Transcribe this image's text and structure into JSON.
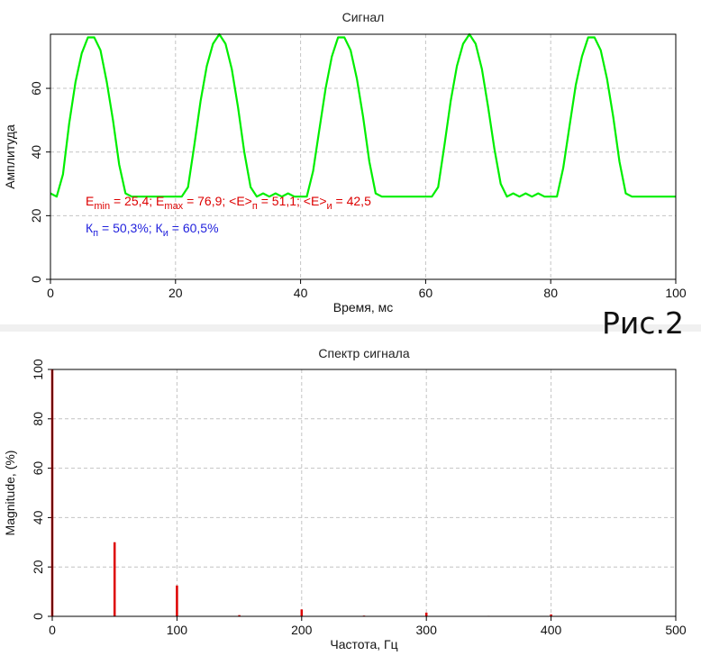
{
  "figure_label": "Рис.2",
  "chart_data": [
    {
      "type": "line",
      "title": "Сигнал",
      "xlabel": "Время, мс",
      "ylabel": "Амплитуда",
      "xlim": [
        0,
        100
      ],
      "ylim": [
        0,
        77
      ],
      "xticks": [
        0,
        20,
        40,
        60,
        80,
        100
      ],
      "yticks": [
        0,
        20,
        40,
        60
      ],
      "grid": true,
      "series": [
        {
          "color": "#00ee00",
          "x": [
            0,
            1,
            2,
            3,
            4,
            5,
            6,
            7,
            8,
            9,
            10,
            11,
            12,
            13,
            14,
            15,
            16,
            17,
            18,
            19,
            20,
            21,
            22,
            23,
            24,
            25,
            26,
            27,
            28,
            29,
            30,
            31,
            32,
            33,
            34,
            35,
            36,
            37,
            38,
            39,
            40,
            41,
            42,
            43,
            44,
            45,
            46,
            47,
            48,
            49,
            50,
            51,
            52,
            53,
            54,
            55,
            56,
            57,
            58,
            59,
            60,
            61,
            62,
            63,
            64,
            65,
            66,
            67,
            68,
            69,
            70,
            71,
            72,
            73,
            74,
            75,
            76,
            77,
            78,
            79,
            80,
            81,
            82,
            83,
            84,
            85,
            86,
            87,
            88,
            89,
            90,
            91,
            92,
            93,
            94,
            95,
            96,
            97,
            98,
            99,
            100
          ],
          "y": [
            27,
            26,
            33,
            49,
            62,
            71,
            76,
            76,
            72,
            62,
            50,
            36,
            27,
            26,
            26,
            26,
            26,
            26,
            26,
            26,
            26,
            26,
            29,
            42,
            56,
            67,
            74,
            77,
            74,
            66,
            54,
            40,
            29,
            26,
            27,
            26,
            27,
            26,
            27,
            26,
            26,
            26,
            34,
            47,
            60,
            70,
            76,
            76,
            72,
            63,
            51,
            37,
            27,
            26,
            26,
            26,
            26,
            26,
            26,
            26,
            26,
            26,
            29,
            42,
            56,
            67,
            74,
            77,
            74,
            66,
            54,
            41,
            30,
            26,
            27,
            26,
            27,
            26,
            27,
            26,
            26,
            26,
            35,
            48,
            61,
            70,
            76,
            76,
            72,
            63,
            51,
            37,
            27,
            26,
            26,
            26,
            26,
            26,
            26,
            26,
            26
          ]
        }
      ],
      "annotations": [
        {
          "color": "#dd0000",
          "parts": [
            {
              "t": "E"
            },
            {
              "t": "min",
              "sub": true
            },
            {
              "t": " = 25,4; E"
            },
            {
              "t": "max",
              "sub": true
            },
            {
              "t": " = 76,9; <E>"
            },
            {
              "t": "п",
              "sub": true
            },
            {
              "t": " = 51,1; <E>"
            },
            {
              "t": "и",
              "sub": true
            },
            {
              "t": " = 42,5"
            }
          ]
        },
        {
          "color": "#2222dd",
          "parts": [
            {
              "t": "К"
            },
            {
              "t": "п",
              "sub": true
            },
            {
              "t": " = 50,3%; К"
            },
            {
              "t": "и",
              "sub": true
            },
            {
              "t": " = 60,5%"
            }
          ]
        }
      ]
    },
    {
      "type": "bar",
      "title": "Спектр сигнала",
      "xlabel": "Частота, Гц",
      "ylabel": "Magnitude, (%)",
      "xlim": [
        0,
        500
      ],
      "ylim": [
        0,
        100
      ],
      "xticks": [
        0,
        100,
        200,
        300,
        400,
        500
      ],
      "yticks": [
        0,
        20,
        40,
        60,
        80,
        100
      ],
      "grid": true,
      "series": [
        {
          "color": "#dd0000",
          "x": [
            0,
            50,
            100,
            150,
            200,
            250,
            300,
            350,
            400
          ],
          "values": [
            100,
            30,
            12.5,
            0.5,
            2.8,
            0.3,
            1.5,
            0.2,
            0.8
          ]
        }
      ]
    }
  ]
}
